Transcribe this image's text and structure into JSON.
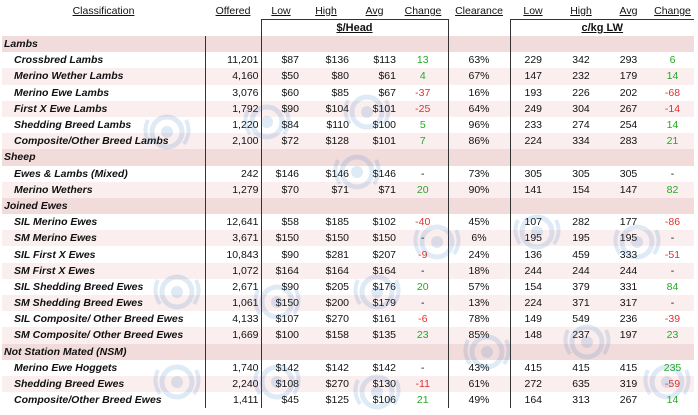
{
  "headers": {
    "classification": "Classification",
    "offered": "Offered",
    "low": "Low",
    "high": "High",
    "avg": "Avg",
    "change": "Change",
    "clearance": "Clearance",
    "low2": "Low",
    "high2": "High",
    "avg2": "Avg",
    "change2": "Change"
  },
  "units": {
    "head": "$/Head",
    "ckg": "c/kg LW"
  },
  "sections": [
    {
      "title": "Lambs",
      "rows": [
        {
          "name": "Crossbred Lambs",
          "offered": "11,201",
          "low": "$87",
          "high": "$136",
          "avg": "$113",
          "change": "13",
          "clearance": "63%",
          "low_c": "229",
          "high_c": "342",
          "avg_c": "293",
          "change_c": "6"
        },
        {
          "name": "Merino Wether Lambs",
          "offered": "4,160",
          "low": "$50",
          "high": "$80",
          "avg": "$61",
          "change": "4",
          "clearance": "67%",
          "low_c": "147",
          "high_c": "232",
          "avg_c": "179",
          "change_c": "14"
        },
        {
          "name": "Merino Ewe Lambs",
          "offered": "3,076",
          "low": "$60",
          "high": "$85",
          "avg": "$67",
          "change": "-37",
          "clearance": "16%",
          "low_c": "193",
          "high_c": "226",
          "avg_c": "202",
          "change_c": "-68"
        },
        {
          "name": "First X Ewe Lambs",
          "offered": "1,792",
          "low": "$90",
          "high": "$104",
          "avg": "$101",
          "change": "-25",
          "clearance": "64%",
          "low_c": "249",
          "high_c": "304",
          "avg_c": "267",
          "change_c": "-14"
        },
        {
          "name": "Shedding Breed Lambs",
          "offered": "1,220",
          "low": "$84",
          "high": "$110",
          "avg": "$100",
          "change": "5",
          "clearance": "96%",
          "low_c": "233",
          "high_c": "274",
          "avg_c": "254",
          "change_c": "14"
        },
        {
          "name": "Composite/Other Breed Lambs",
          "offered": "2,100",
          "low": "$72",
          "high": "$128",
          "avg": "$101",
          "change": "7",
          "clearance": "86%",
          "low_c": "224",
          "high_c": "334",
          "avg_c": "283",
          "change_c": "21"
        }
      ]
    },
    {
      "title": "Sheep",
      "rows": [
        {
          "name": "Ewes & Lambs (Mixed)",
          "offered": "242",
          "low": "$146",
          "high": "$146",
          "avg": "$146",
          "change": "-",
          "clearance": "73%",
          "low_c": "305",
          "high_c": "305",
          "avg_c": "305",
          "change_c": "-"
        },
        {
          "name": "Merino Wethers",
          "offered": "1,279",
          "low": "$70",
          "high": "$71",
          "avg": "$71",
          "change": "20",
          "clearance": "90%",
          "low_c": "141",
          "high_c": "154",
          "avg_c": "147",
          "change_c": "82"
        }
      ]
    },
    {
      "title": "Joined Ewes",
      "rows": [
        {
          "name": "SIL Merino Ewes",
          "offered": "12,641",
          "low": "$58",
          "high": "$185",
          "avg": "$102",
          "change": "-40",
          "clearance": "45%",
          "low_c": "107",
          "high_c": "282",
          "avg_c": "177",
          "change_c": "-86"
        },
        {
          "name": "SM Merino Ewes",
          "offered": "3,671",
          "low": "$150",
          "high": "$150",
          "avg": "$150",
          "change": "-",
          "clearance": "6%",
          "low_c": "195",
          "high_c": "195",
          "avg_c": "195",
          "change_c": "-"
        },
        {
          "name": "SIL First X Ewes",
          "offered": "10,843",
          "low": "$90",
          "high": "$281",
          "avg": "$207",
          "change": "-9",
          "clearance": "24%",
          "low_c": "136",
          "high_c": "459",
          "avg_c": "333",
          "change_c": "-51"
        },
        {
          "name": "SM First X Ewes",
          "offered": "1,072",
          "low": "$164",
          "high": "$164",
          "avg": "$164",
          "change": "-",
          "clearance": "18%",
          "low_c": "244",
          "high_c": "244",
          "avg_c": "244",
          "change_c": "-"
        },
        {
          "name": "SIL Shedding Breed Ewes",
          "offered": "2,671",
          "low": "$90",
          "high": "$205",
          "avg": "$176",
          "change": "20",
          "clearance": "57%",
          "low_c": "154",
          "high_c": "379",
          "avg_c": "331",
          "change_c": "84"
        },
        {
          "name": "SM Shedding Breed Ewes",
          "offered": "1,061",
          "low": "$150",
          "high": "$200",
          "avg": "$179",
          "change": "-",
          "clearance": "13%",
          "low_c": "224",
          "high_c": "371",
          "avg_c": "317",
          "change_c": "-"
        },
        {
          "name": "SIL Composite/ Other Breed Ewes",
          "offered": "4,133",
          "low": "$107",
          "high": "$270",
          "avg": "$161",
          "change": "-6",
          "clearance": "78%",
          "low_c": "149",
          "high_c": "549",
          "avg_c": "236",
          "change_c": "-39"
        },
        {
          "name": "SM Composite/ Other Breed Ewes",
          "offered": "1,669",
          "low": "$100",
          "high": "$158",
          "avg": "$135",
          "change": "23",
          "clearance": "85%",
          "low_c": "148",
          "high_c": "237",
          "avg_c": "197",
          "change_c": "23"
        }
      ]
    },
    {
      "title": "Not Station Mated (NSM)",
      "rows": [
        {
          "name": "Merino Ewe Hoggets",
          "offered": "1,740",
          "low": "$142",
          "high": "$142",
          "avg": "$142",
          "change": "-",
          "clearance": "43%",
          "low_c": "415",
          "high_c": "415",
          "avg_c": "415",
          "change_c": "235"
        },
        {
          "name": "Shedding Breed Ewes",
          "offered": "2,240",
          "low": "$108",
          "high": "$270",
          "avg": "$130",
          "change": "-11",
          "clearance": "61%",
          "low_c": "272",
          "high_c": "635",
          "avg_c": "319",
          "change_c": "-59"
        },
        {
          "name": "Composite/Other Breed Ewes",
          "offered": "1,411",
          "low": "$45",
          "high": "$125",
          "avg": "$106",
          "change": "21",
          "clearance": "49%",
          "low_c": "164",
          "high_c": "313",
          "avg_c": "267",
          "change_c": "14"
        }
      ]
    }
  ],
  "colors": {
    "positive": "#22aa22",
    "negative": "#e03030",
    "category_bg": "#f2dcdb",
    "watermark": "#3a7fc4"
  },
  "watermark_icon": "ram-logo-icon"
}
